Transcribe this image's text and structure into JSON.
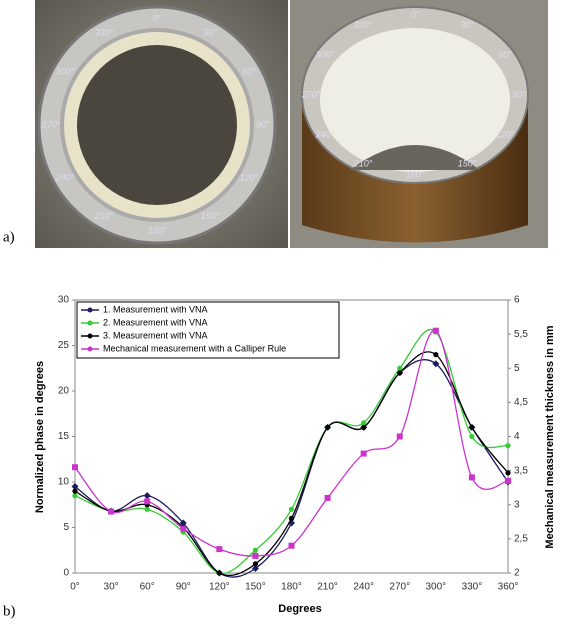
{
  "figure": {
    "panel_a_label": "a)",
    "panel_b_label": "b)",
    "photo_left_labels": [
      "0°",
      "30°",
      "60°",
      "90°",
      "120°",
      "150°",
      "180°",
      "210°",
      "240°",
      "270°",
      "300°",
      "330°"
    ],
    "photo_right_labels": [
      "0°",
      "30°",
      "60°",
      "90°",
      "120°",
      "150°",
      "180°",
      "210°",
      "240°",
      "270°",
      "300°",
      "330°"
    ]
  },
  "chart_data": {
    "type": "line",
    "y_label": "Normalized phase in degrees",
    "y2_label": "Mechanical measurement thickness in mm",
    "x_label": "Degrees",
    "categories": [
      "0°",
      "30°",
      "60°",
      "90°",
      "120°",
      "150°",
      "180°",
      "210°",
      "240°",
      "270°",
      "300°",
      "330°",
      "360°"
    ],
    "ylim": [
      0,
      30
    ],
    "yticks": [
      0,
      5,
      10,
      15,
      20,
      25,
      30
    ],
    "y2lim": [
      2,
      6
    ],
    "y2ticks": [
      2,
      {
        "value": 2.5,
        "label": "2,5"
      },
      3,
      {
        "value": 3.5,
        "label": "3,5"
      },
      4,
      {
        "value": 4.5,
        "label": "4,5"
      },
      5,
      {
        "value": 5.5,
        "label": "5,5"
      },
      6
    ],
    "legend": "top-left",
    "series": [
      {
        "name": "1. Measurement with VNA",
        "color": "#1c1c60",
        "marker": "diamond",
        "values": [
          9.5,
          6.8,
          8.5,
          5.5,
          0,
          0.5,
          5.5,
          16,
          16,
          22,
          23,
          16,
          10
        ]
      },
      {
        "name": "2. Measurement with VNA",
        "color": "#33cc33",
        "marker": "circle",
        "values": [
          8.5,
          6.8,
          7,
          4.5,
          0,
          2.5,
          7,
          16,
          16.5,
          22.5,
          26.5,
          15,
          14
        ]
      },
      {
        "name": "3. Measurement with VNA",
        "color": "#000000",
        "marker": "circle",
        "values": [
          9,
          6.8,
          7.5,
          5,
          0,
          1,
          6,
          16,
          16,
          22,
          24,
          16,
          11
        ]
      },
      {
        "name": "Mechanical measurement with a Calliper Rule",
        "color": "#cc33cc",
        "marker": "square",
        "axis": "y2",
        "values": [
          3.55,
          2.9,
          3.05,
          2.65,
          2.35,
          2.25,
          2.4,
          3.1,
          3.75,
          4.0,
          5.55,
          3.4,
          3.35
        ]
      }
    ]
  }
}
